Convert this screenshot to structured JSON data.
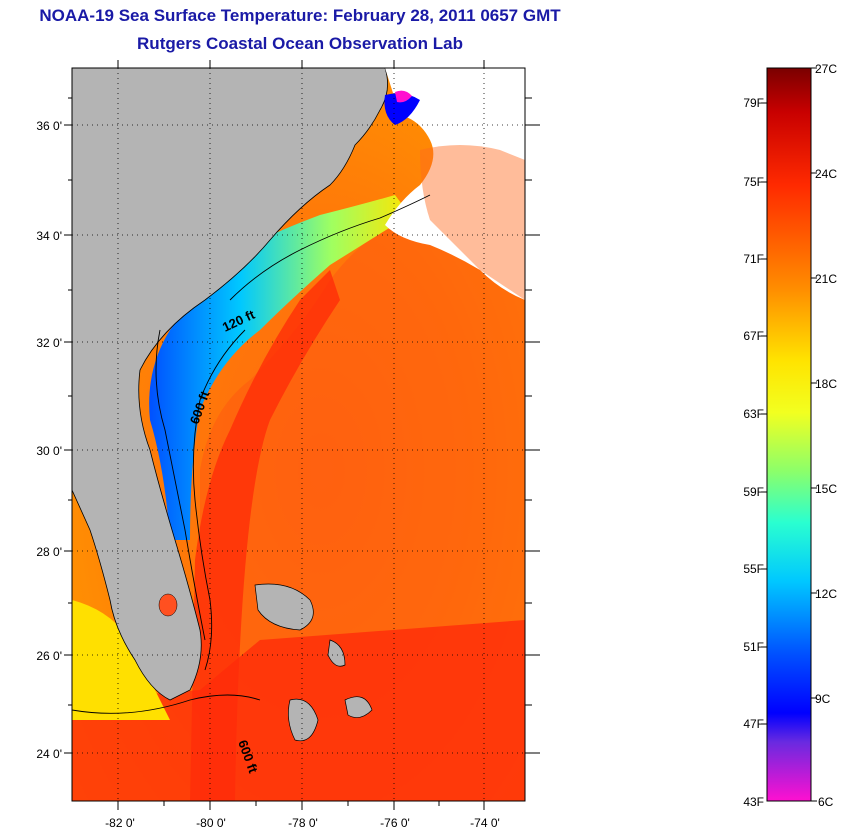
{
  "title": "NOAA-19 Sea Surface Temperature:  February 28, 2011 0657 GMT",
  "subtitle": "Rutgers Coastal Ocean Observation Lab",
  "map": {
    "lat_labels": [
      "36 0'",
      "34 0'",
      "32 0'",
      "30 0'",
      "28 0'",
      "26 0'",
      "24 0'"
    ],
    "lon_labels": [
      "-82 0'",
      "-80 0'",
      "-78 0'",
      "-76 0'",
      "-74 0'"
    ],
    "contour_labels": [
      "120 ft",
      "600 ft",
      "600 ft"
    ],
    "colors": {
      "land": "#b4b4b4",
      "ocean_warm": "#ff3a0a",
      "ocean_mid": "#ff8c00",
      "shelf_cold": "#00c8ff",
      "cloud": "#ffffff"
    }
  },
  "colorbar": {
    "fahrenheit": [
      "79F",
      "75F",
      "71F",
      "67F",
      "63F",
      "59F",
      "55F",
      "51F",
      "47F",
      "43F"
    ],
    "celsius": [
      "27C",
      "24C",
      "21C",
      "18C",
      "15C",
      "12C",
      "9C",
      "6C"
    ],
    "range_c": [
      6,
      27
    ]
  }
}
